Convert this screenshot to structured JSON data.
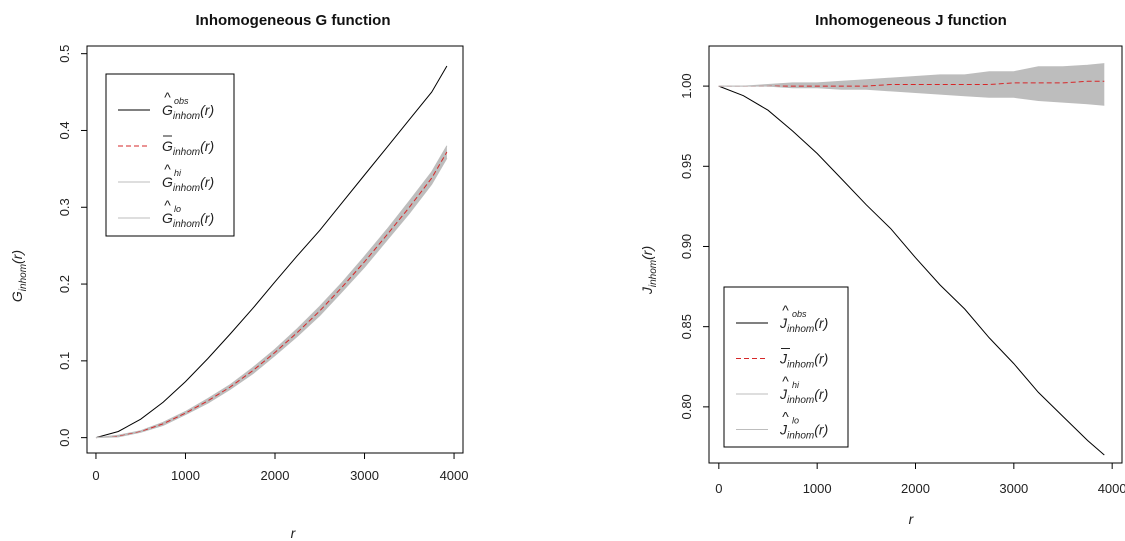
{
  "chart_data": [
    {
      "type": "line",
      "title": "Inhomogeneous G function",
      "xlabel": "r",
      "ylabel": {
        "base": "G",
        "sub": "inhom",
        "arg": "(r)"
      },
      "xlim": [
        0,
        4000
      ],
      "ylim": [
        0,
        0.5
      ],
      "xticks": [
        0,
        1000,
        2000,
        3000,
        4000
      ],
      "yticks": [
        0.0,
        0.1,
        0.2,
        0.3,
        0.4,
        0.5
      ],
      "ytick_labels": [
        "0.0",
        "0.1",
        "0.2",
        "0.3",
        "0.4",
        "0.5"
      ],
      "grid": false,
      "legend_position": "top-left",
      "legend": [
        {
          "base": "G",
          "hat": true,
          "bar": false,
          "sup": "obs",
          "sub": "inhom",
          "arg": "(r)",
          "style": "solid",
          "color": "#000000"
        },
        {
          "base": "G",
          "hat": false,
          "bar": true,
          "sup": "",
          "sub": "inhom",
          "arg": "(r)",
          "style": "dashed",
          "color": "#d62728"
        },
        {
          "base": "G",
          "hat": true,
          "bar": false,
          "sup": "hi",
          "sub": "inhom",
          "arg": "(r)",
          "style": "solid",
          "color": "#bdbdbd"
        },
        {
          "base": "G",
          "hat": true,
          "bar": false,
          "sup": "lo",
          "sub": "inhom",
          "arg": "(r)",
          "style": "solid",
          "color": "#bdbdbd"
        }
      ],
      "x": [
        0,
        250,
        500,
        750,
        1000,
        1250,
        1500,
        1750,
        2000,
        2250,
        2500,
        2750,
        3000,
        3250,
        3500,
        3750,
        3920
      ],
      "series": [
        {
          "key": "obs",
          "values": [
            0,
            0.008,
            0.024,
            0.046,
            0.073,
            0.103,
            0.135,
            0.168,
            0.203,
            0.237,
            0.27,
            0.306,
            0.342,
            0.378,
            0.414,
            0.45,
            0.484
          ],
          "color": "#000000",
          "dash": false
        },
        {
          "key": "theo",
          "values": [
            0,
            0.002,
            0.008,
            0.018,
            0.032,
            0.048,
            0.066,
            0.087,
            0.111,
            0.137,
            0.165,
            0.196,
            0.229,
            0.264,
            0.3,
            0.338,
            0.372
          ],
          "color": "#d62728",
          "dash": true
        },
        {
          "key": "hi",
          "values": [
            0,
            0.003,
            0.009,
            0.02,
            0.034,
            0.051,
            0.069,
            0.091,
            0.115,
            0.142,
            0.171,
            0.202,
            0.236,
            0.271,
            0.308,
            0.346,
            0.38
          ],
          "color": "#bdbdbd",
          "dash": false
        },
        {
          "key": "lo",
          "values": [
            0,
            0.001,
            0.007,
            0.016,
            0.03,
            0.045,
            0.063,
            0.083,
            0.107,
            0.132,
            0.159,
            0.19,
            0.222,
            0.257,
            0.292,
            0.33,
            0.364
          ],
          "color": "#bdbdbd",
          "dash": false
        }
      ]
    },
    {
      "type": "line",
      "title": "Inhomogeneous J function",
      "xlabel": "r",
      "ylabel": {
        "base": "J",
        "sub": "inhom",
        "arg": "(r)"
      },
      "xlim": [
        0,
        4000
      ],
      "ylim": [
        0.77,
        1.02
      ],
      "xticks": [
        0,
        1000,
        2000,
        3000,
        4000
      ],
      "yticks": [
        0.8,
        0.85,
        0.9,
        0.95,
        1.0
      ],
      "ytick_labels": [
        "0.80",
        "0.85",
        "0.90",
        "0.95",
        "1.00"
      ],
      "grid": false,
      "legend_position": "bottom-left",
      "legend": [
        {
          "base": "J",
          "hat": true,
          "bar": false,
          "sup": "obs",
          "sub": "inhom",
          "arg": "(r)",
          "style": "solid",
          "color": "#000000"
        },
        {
          "base": "J",
          "hat": false,
          "bar": true,
          "sup": "",
          "sub": "inhom",
          "arg": "(r)",
          "style": "dashed",
          "color": "#d62728"
        },
        {
          "base": "J",
          "hat": true,
          "bar": false,
          "sup": "hi",
          "sub": "inhom",
          "arg": "(r)",
          "style": "solid",
          "color": "#bdbdbd"
        },
        {
          "base": "J",
          "hat": true,
          "bar": false,
          "sup": "lo",
          "sub": "inhom",
          "arg": "(r)",
          "style": "solid",
          "color": "#bdbdbd"
        }
      ],
      "x": [
        0,
        250,
        500,
        750,
        1000,
        1250,
        1500,
        1750,
        2000,
        2250,
        2500,
        2750,
        3000,
        3250,
        3500,
        3750,
        3920
      ],
      "series": [
        {
          "key": "obs",
          "values": [
            1.0,
            0.994,
            0.985,
            0.972,
            0.958,
            0.942,
            0.926,
            0.911,
            0.893,
            0.876,
            0.861,
            0.843,
            0.827,
            0.809,
            0.794,
            0.779,
            0.77
          ],
          "color": "#000000",
          "dash": false
        },
        {
          "key": "theo",
          "values": [
            1.0,
            1.0,
            1.0,
            1.0,
            1.0,
            1.0,
            1.0,
            1.001,
            1.001,
            1.001,
            1.001,
            1.001,
            1.002,
            1.002,
            1.002,
            1.003,
            1.003
          ],
          "color": "#d62728",
          "dash": true
        },
        {
          "key": "hi",
          "values": [
            1.0,
            1.0,
            1.001,
            1.002,
            1.002,
            1.003,
            1.004,
            1.005,
            1.006,
            1.007,
            1.007,
            1.009,
            1.009,
            1.012,
            1.012,
            1.013,
            1.014
          ],
          "color": "#bdbdbd",
          "dash": false
        },
        {
          "key": "lo",
          "values": [
            1.0,
            1.0,
            1.0,
            0.999,
            0.999,
            0.998,
            0.998,
            0.997,
            0.996,
            0.995,
            0.994,
            0.993,
            0.993,
            0.991,
            0.99,
            0.989,
            0.988
          ],
          "color": "#bdbdbd",
          "dash": false
        }
      ]
    }
  ]
}
